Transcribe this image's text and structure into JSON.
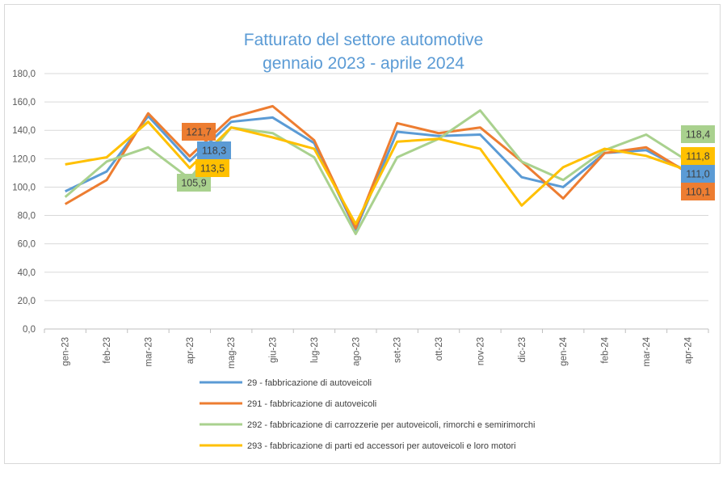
{
  "chart_data": {
    "type": "line",
    "title": [
      "Fatturato del settore automotive",
      "gennaio 2023 - aprile 2024"
    ],
    "xlabel": "",
    "ylabel": "",
    "ylim": [
      0,
      180
    ],
    "yticks": [
      "0,0",
      "20,0",
      "40,0",
      "60,0",
      "80,0",
      "100,0",
      "120,0",
      "140,0",
      "160,0",
      "180,0"
    ],
    "grid": true,
    "legend_position": "bottom",
    "categories": [
      "gen-23",
      "feb-23",
      "mar-23",
      "apr-23",
      "mag-23",
      "giu-23",
      "lug-23",
      "ago-23",
      "set-23",
      "ott-23",
      "nov-23",
      "dic-23",
      "gen-24",
      "feb-24",
      "mar-24",
      "apr-24"
    ],
    "series": [
      {
        "name": "29 - fabbricazione di autoveicoli",
        "color": "#5b9bd5",
        "values": [
          97,
          111,
          150,
          118.3,
          146,
          149,
          131,
          70,
          139,
          136,
          137,
          107,
          100,
          124,
          126,
          111.0
        ],
        "labels": {
          "3": "118,3",
          "15": "111,0"
        }
      },
      {
        "name": "291 - fabbricazione di autoveicoli",
        "color": "#ed7d31",
        "values": [
          88,
          105,
          152,
          121.7,
          149,
          157,
          133,
          71,
          145,
          138,
          142,
          118,
          92,
          124,
          128,
          110.1
        ],
        "labels": {
          "3": "121,7",
          "15": "110,1"
        }
      },
      {
        "name": "292 - fabbricazione di carrozzerie per autoveicoli, rimorchi e semirimorchi",
        "color": "#a9d18e",
        "values": [
          93,
          118,
          128,
          105.9,
          142,
          138,
          121,
          67,
          121,
          134,
          154,
          118,
          105,
          126,
          137,
          118.4
        ],
        "labels": {
          "3": "105,9",
          "15": "118,4"
        }
      },
      {
        "name": "293 - fabbricazione di parti ed accessori per autoveicoli e loro motori",
        "color": "#ffc000",
        "values": [
          116,
          121,
          146,
          113.5,
          142,
          135,
          127,
          74,
          132,
          134,
          127,
          87,
          114,
          127,
          122,
          111.8
        ],
        "labels": {
          "3": "113,5",
          "15": "111,8"
        }
      }
    ]
  }
}
